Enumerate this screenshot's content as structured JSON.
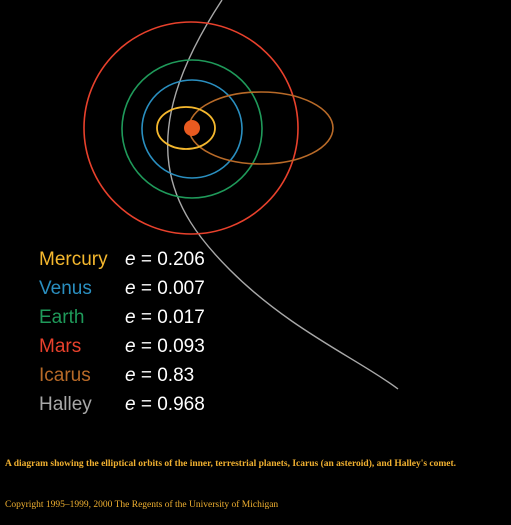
{
  "colors": {
    "background": "#000000",
    "sun": "#e85a20",
    "caption": "#f0b030"
  },
  "orbits": [
    {
      "name": "Mercury",
      "e_label": "e",
      "e_value": "= 0.206",
      "color": "#f5b82e"
    },
    {
      "name": "Venus",
      "e_label": "e",
      "e_value": "= 0.007",
      "color": "#2a8fc0"
    },
    {
      "name": "Earth",
      "e_label": "e",
      "e_value": "= 0.017",
      "color": "#1f9a5a"
    },
    {
      "name": "Mars",
      "e_label": "e",
      "e_value": "= 0.093",
      "color": "#e8412c"
    },
    {
      "name": "Icarus",
      "e_label": "e",
      "e_value": "= 0.83",
      "color": "#b86a28"
    },
    {
      "name": "Halley",
      "e_label": "e",
      "e_value": "= 0.968",
      "color": "#a8a8a8"
    }
  ],
  "caption": "A diagram showing the elliptical orbits of the inner, terrestrial planets, Icarus (an asteroid), and Halley's comet.",
  "copyright": "Copyright 1995–1999, 2000 The Regents of the University of Michigan"
}
